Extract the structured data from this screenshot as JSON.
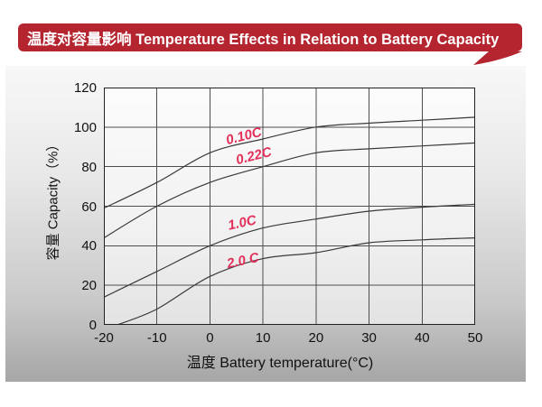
{
  "banner": {
    "text": "温度对容量影响 Temperature Effects in Relation to Battery Capacity",
    "bg_color": "#b4252f",
    "text_color": "#ffffff"
  },
  "colors": {
    "curve": "#3a3a3a",
    "grid": "#4d4d4d",
    "plot_border": "#222222",
    "series_label": "#e2305b",
    "tick_text": "#111111"
  },
  "chart_data": {
    "type": "line",
    "title": "温度对容量影响 Temperature Effects in Relation to Battery Capacity",
    "xlabel": "温度  Battery temperature(°C)",
    "ylabel": "容量 Capacity（%）",
    "xlim": [
      -20,
      50
    ],
    "ylim": [
      0,
      120
    ],
    "x_ticks": [
      -20,
      -10,
      0,
      10,
      20,
      30,
      40,
      50
    ],
    "y_ticks": [
      0,
      20,
      40,
      60,
      80,
      100,
      120
    ],
    "grid": true,
    "legend": "inline-curve-labels",
    "series": [
      {
        "name": "0.10C",
        "x": [
          -20,
          -10,
          0,
          10,
          20,
          30,
          40,
          50
        ],
        "y": [
          59,
          72,
          87,
          94,
          100,
          102,
          103.5,
          105
        ],
        "label": {
          "x": 6.4,
          "y": 95.5,
          "rotate": -14
        }
      },
      {
        "name": "0.22C",
        "x": [
          -20,
          -10,
          0,
          10,
          20,
          30,
          40,
          50
        ],
        "y": [
          44,
          60,
          72,
          80,
          87,
          89,
          90.5,
          92
        ],
        "label": {
          "x": 8.2,
          "y": 85.5,
          "rotate": -14
        }
      },
      {
        "name": "1.0C",
        "x": [
          -20,
          -10,
          0,
          10,
          20,
          30,
          40,
          50
        ],
        "y": [
          14,
          27,
          40,
          49,
          53.5,
          57.5,
          59.5,
          61
        ],
        "label": {
          "x": 6.0,
          "y": 51.5,
          "rotate": -12
        }
      },
      {
        "name": "2.0 C",
        "x": [
          -17.5,
          -10,
          0,
          10,
          20,
          30,
          40,
          50
        ],
        "y": [
          0,
          8,
          24.5,
          33.5,
          36.5,
          41.5,
          43,
          44
        ],
        "label": {
          "x": 6.2,
          "y": 32.5,
          "rotate": -12
        }
      }
    ]
  }
}
